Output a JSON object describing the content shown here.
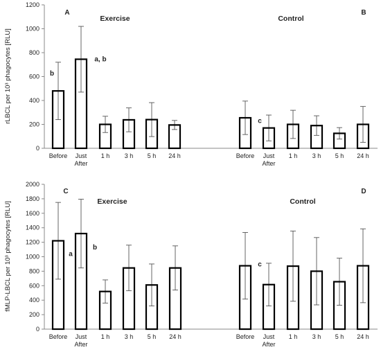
{
  "chart_data": [
    {
      "type": "bar",
      "ylabel": "rLBCL per 10³ phagocytes [RLU]",
      "ylim": [
        0,
        1200
      ],
      "ytick_step": 200,
      "panels": [
        {
          "letter": "A",
          "group": "Exercise",
          "categories": [
            "Before",
            "Just After",
            "1 h",
            "3 h",
            "5 h",
            "24 h"
          ],
          "values": [
            480,
            745,
            200,
            238,
            240,
            195
          ],
          "error": [
            240,
            275,
            68,
            100,
            142,
            38
          ],
          "annotations": [
            "b",
            "a, b",
            "",
            "",
            "",
            ""
          ]
        },
        {
          "letter": "B",
          "group": "Control",
          "categories": [
            "Before",
            "Just After",
            "1 h",
            "3 h",
            "5 h",
            "24 h"
          ],
          "values": [
            255,
            170,
            200,
            190,
            125,
            200
          ],
          "error": [
            140,
            108,
            118,
            82,
            48,
            150
          ],
          "annotations": [
            "",
            "c",
            "",
            "",
            "",
            ""
          ]
        }
      ]
    },
    {
      "type": "bar",
      "ylabel": "fMLP-LBCL per 10³ phagocytes [RLU]",
      "ylim": [
        0,
        2000
      ],
      "ytick_step": 200,
      "panels": [
        {
          "letter": "C",
          "group": "Exercise",
          "categories": [
            "Before",
            "Just After",
            "1 h",
            "3 h",
            "5 h",
            "24 h"
          ],
          "values": [
            1220,
            1320,
            520,
            845,
            610,
            845
          ],
          "error": [
            530,
            475,
            160,
            315,
            290,
            305
          ],
          "annotations": [
            "a",
            "b",
            "",
            "",
            "",
            ""
          ]
        },
        {
          "letter": "D",
          "group": "Control",
          "categories": [
            "Before",
            "Just After",
            "1 h",
            "3 h",
            "5 h",
            "24 h"
          ],
          "values": [
            875,
            615,
            870,
            800,
            655,
            875
          ],
          "error": [
            460,
            295,
            485,
            465,
            325,
            510
          ],
          "annotations": [
            "",
            "c",
            "",
            "",
            "",
            ""
          ]
        }
      ]
    }
  ]
}
